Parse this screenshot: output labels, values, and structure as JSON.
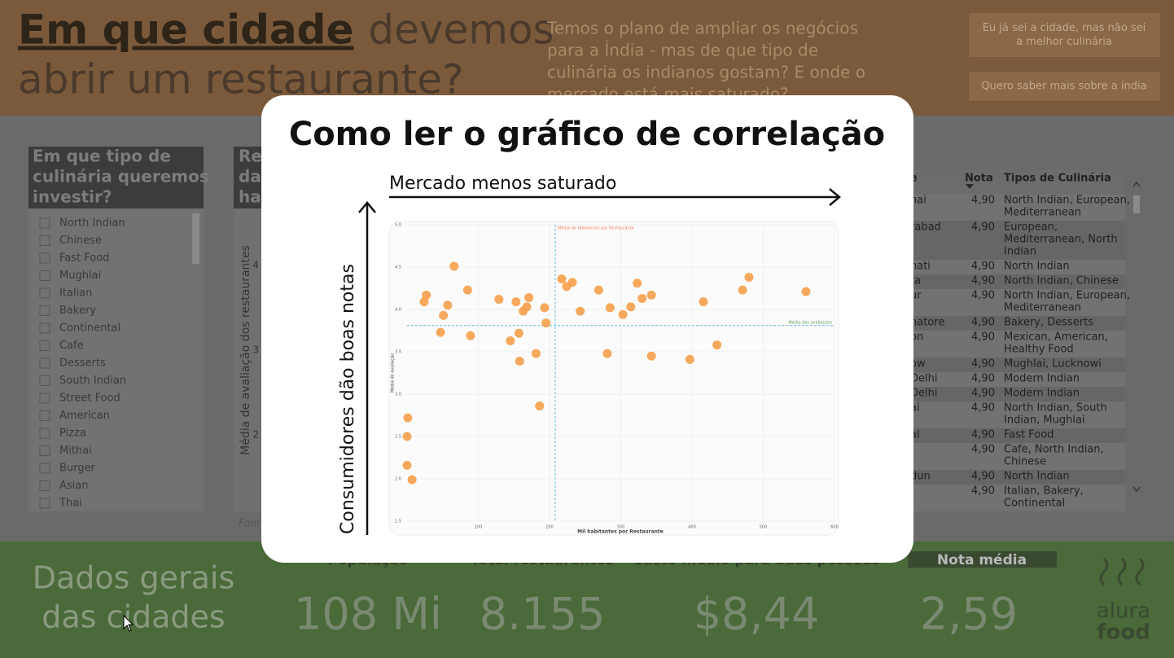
{
  "header": {
    "title_highlight": "Em que cidade",
    "title_rest": [
      "devemos",
      "abrir um restaurante?"
    ],
    "description": [
      "Temos o plano de ampliar os negócios",
      "para a Índia - mas de que tipo de",
      "culinária os indianos gostam? E onde o",
      "mercado está mais saturado?"
    ],
    "buttons": [
      [
        "Eu já sei a cidade, mas não sei",
        "a melhor culinária"
      ],
      [
        "Quero saber mais sobre a índia"
      ]
    ]
  },
  "filter": {
    "title": [
      "Em que tipo de",
      "culinária queremos",
      "investir?"
    ],
    "options": [
      "North Indian",
      "Chinese",
      "Fast Food",
      "Mughlai",
      "Italian",
      "Bakery",
      "Continental",
      "Cafe",
      "Desserts",
      "South Indian",
      "Street Food",
      "American",
      "Pizza",
      "Mithai",
      "Burger",
      "Asian",
      "Thai"
    ]
  },
  "middle_panel": {
    "title": [
      "Re",
      "da",
      "hal"
    ],
    "y_axis_label": "Média de avaliação dos restaurantes",
    "yticks": [
      "4",
      "3",
      "2"
    ],
    "footer": "Font"
  },
  "table": {
    "columns": [
      "e",
      "Nota",
      "Tipos de Culinária"
    ],
    "rows": [
      [
        "hai",
        "4,90",
        [
          "North Indian, European,",
          "Mediterranean"
        ]
      ],
      [
        "rabad",
        "4,90",
        [
          "European,",
          "Mediterranean, North",
          "Indian"
        ]
      ],
      [
        "hati",
        "4,90",
        [
          "North Indian"
        ]
      ],
      [
        "ta",
        "4,90",
        [
          "North Indian, Chinese"
        ]
      ],
      [
        "ur",
        "4,90",
        [
          "North Indian, European,",
          "Mediterranean"
        ]
      ],
      [
        "natore",
        "4,90",
        [
          "Bakery, Desserts"
        ]
      ],
      [
        "on",
        "4,90",
        [
          "Mexican, American,",
          "Healthy Food"
        ]
      ],
      [
        "ow",
        "4,90",
        [
          "Mughlai, Lucknowi"
        ]
      ],
      [
        "Delhi",
        "4,90",
        [
          "Modern Indian"
        ]
      ],
      [
        "Delhi",
        "4,90",
        [
          "Modern Indian"
        ]
      ],
      [
        "ai",
        "4,90",
        [
          "North Indian, South",
          "Indian, Mughlai"
        ]
      ],
      [
        "al",
        "4,90",
        [
          "Fast Food"
        ]
      ],
      [
        null,
        "4,90",
        [
          "Cafe, North Indian,",
          "Chinese"
        ]
      ],
      [
        "dun",
        "4,90",
        [
          "North Indian"
        ]
      ],
      [
        "-",
        "4,90",
        [
          "Italian, Bakery,",
          "Continental"
        ]
      ]
    ]
  },
  "kpis": {
    "title": [
      "Dados gerais",
      "das cidades"
    ],
    "items": [
      {
        "label": "População",
        "value": "108 Mi"
      },
      {
        "label": "Total restaurantes",
        "value": "8.155"
      },
      {
        "label": "Custo médio para duas pessoas",
        "value": "$8,44"
      },
      {
        "label": "Nota média",
        "value": "2,59"
      }
    ]
  },
  "logo": [
    "alura",
    "food"
  ],
  "modal": {
    "title": "Como ler o gráfico de correlação",
    "x_arrow_label": "Mercado menos saturado",
    "y_arrow_label": "Consumidores dão boas notas",
    "chart": {
      "type": "scatter",
      "x_label": "Mil habitantes por Restaurante",
      "y_label": "Média de avaliação",
      "color": "#f5a04a",
      "x": [
        1,
        0,
        0,
        7,
        24,
        27,
        47,
        51,
        57,
        66,
        85,
        89,
        129,
        145,
        153,
        157,
        158,
        163,
        168,
        171,
        181,
        186,
        193,
        195,
        217,
        224,
        232,
        243,
        269,
        281,
        285,
        303,
        314,
        323,
        330,
        343,
        343,
        397,
        416,
        435,
        471,
        480,
        560
      ],
      "values": [
        2.72,
        2.5,
        2.16,
        1.99,
        4.09,
        4.17,
        3.73,
        3.93,
        4.05,
        4.51,
        4.23,
        3.69,
        4.12,
        3.63,
        4.09,
        3.72,
        3.39,
        3.98,
        4.03,
        4.14,
        3.48,
        2.86,
        4.02,
        3.84,
        4.36,
        4.27,
        4.32,
        3.98,
        4.23,
        3.48,
        4.02,
        3.94,
        4.03,
        4.31,
        4.13,
        4.17,
        3.45,
        3.41,
        4.09,
        3.58,
        4.23,
        4.38,
        4.21
      ],
      "xlim": [
        0,
        600
      ],
      "ylim": [
        1.5,
        5.0
      ],
      "xticks": [
        100,
        200,
        300,
        400,
        500,
        600
      ],
      "yticks": [
        {
          "value": 5.0,
          "label": "5.0"
        },
        4.5,
        {
          "value": 4.0,
          "label": "4.0"
        },
        3.5,
        {
          "value": 3.0,
          "label": "3.0"
        },
        2.5,
        {
          "value": 2.0,
          "label": "2.0"
        },
        1.5
      ],
      "grid": true,
      "x_reference": {
        "value": 208,
        "label": "Média de Habitantes por Restaurante",
        "color": "#7fc8e8"
      },
      "y_reference": {
        "value": 3.81,
        "label": "Média das avaliações",
        "color": "#7fc8e8"
      }
    }
  }
}
